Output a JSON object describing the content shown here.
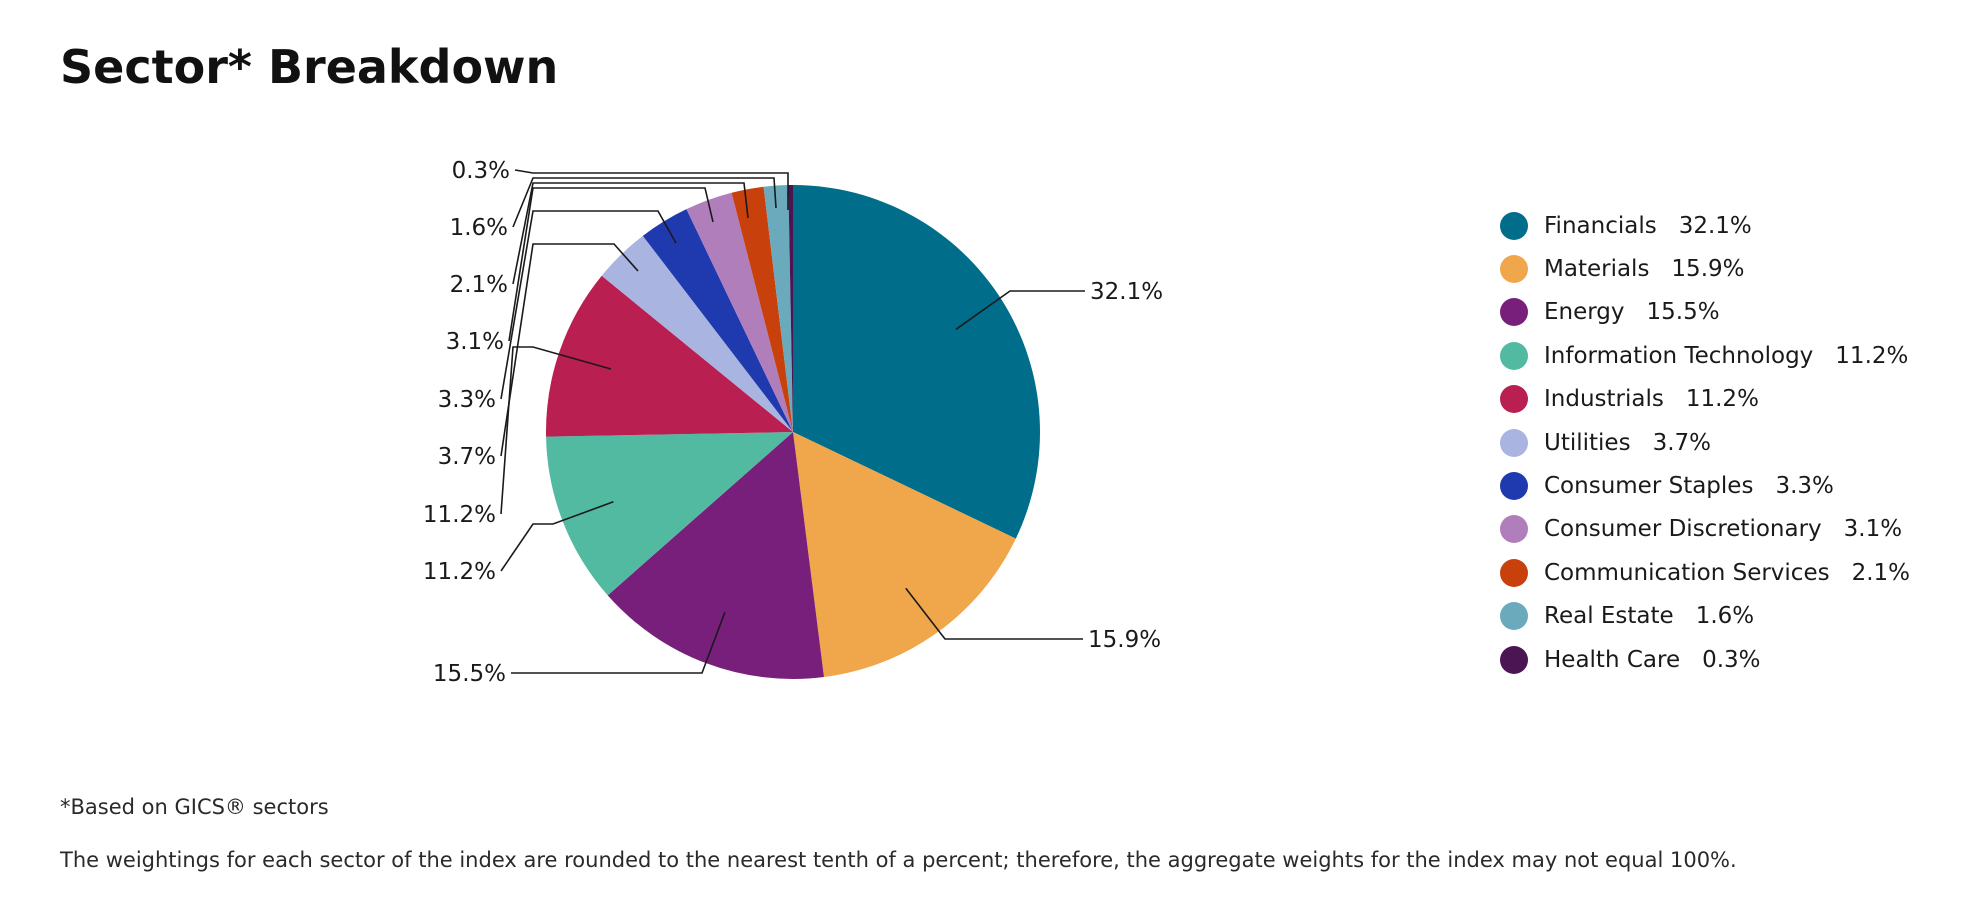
{
  "title": "Sector* Breakdown",
  "footnotes": {
    "gics": "*Based on GICS® sectors",
    "rounding": "The weightings for each sector of the index are rounded to the nearest tenth of a percent; therefore, the aggregate weights for the index may not equal 100%."
  },
  "chart_data": {
    "type": "pie",
    "legend_position": "right",
    "slices": [
      {
        "label": "Financials",
        "value": 32.1,
        "display": "32.1%",
        "color": "#006E8A"
      },
      {
        "label": "Materials",
        "value": 15.9,
        "display": "15.9%",
        "color": "#F0A64A"
      },
      {
        "label": "Energy",
        "value": 15.5,
        "display": "15.5%",
        "color": "#781F7C"
      },
      {
        "label": "Information Technology",
        "value": 11.2,
        "display": "11.2%",
        "color": "#52BAA0"
      },
      {
        "label": "Industrials",
        "value": 11.2,
        "display": "11.2%",
        "color": "#B91F50"
      },
      {
        "label": "Utilities",
        "value": 3.7,
        "display": "3.7%",
        "color": "#A9B4E0"
      },
      {
        "label": "Consumer Staples",
        "value": 3.3,
        "display": "3.3%",
        "color": "#1F3AAE"
      },
      {
        "label": "Consumer Discretionary",
        "value": 3.1,
        "display": "3.1%",
        "color": "#B07EBB"
      },
      {
        "label": "Communication Services",
        "value": 2.1,
        "display": "2.1%",
        "color": "#C8410D"
      },
      {
        "label": "Real Estate",
        "value": 1.6,
        "display": "1.6%",
        "color": "#6BA9BC"
      },
      {
        "label": "Health Care",
        "value": 0.3,
        "display": "0.3%",
        "color": "#4A1552"
      }
    ]
  }
}
